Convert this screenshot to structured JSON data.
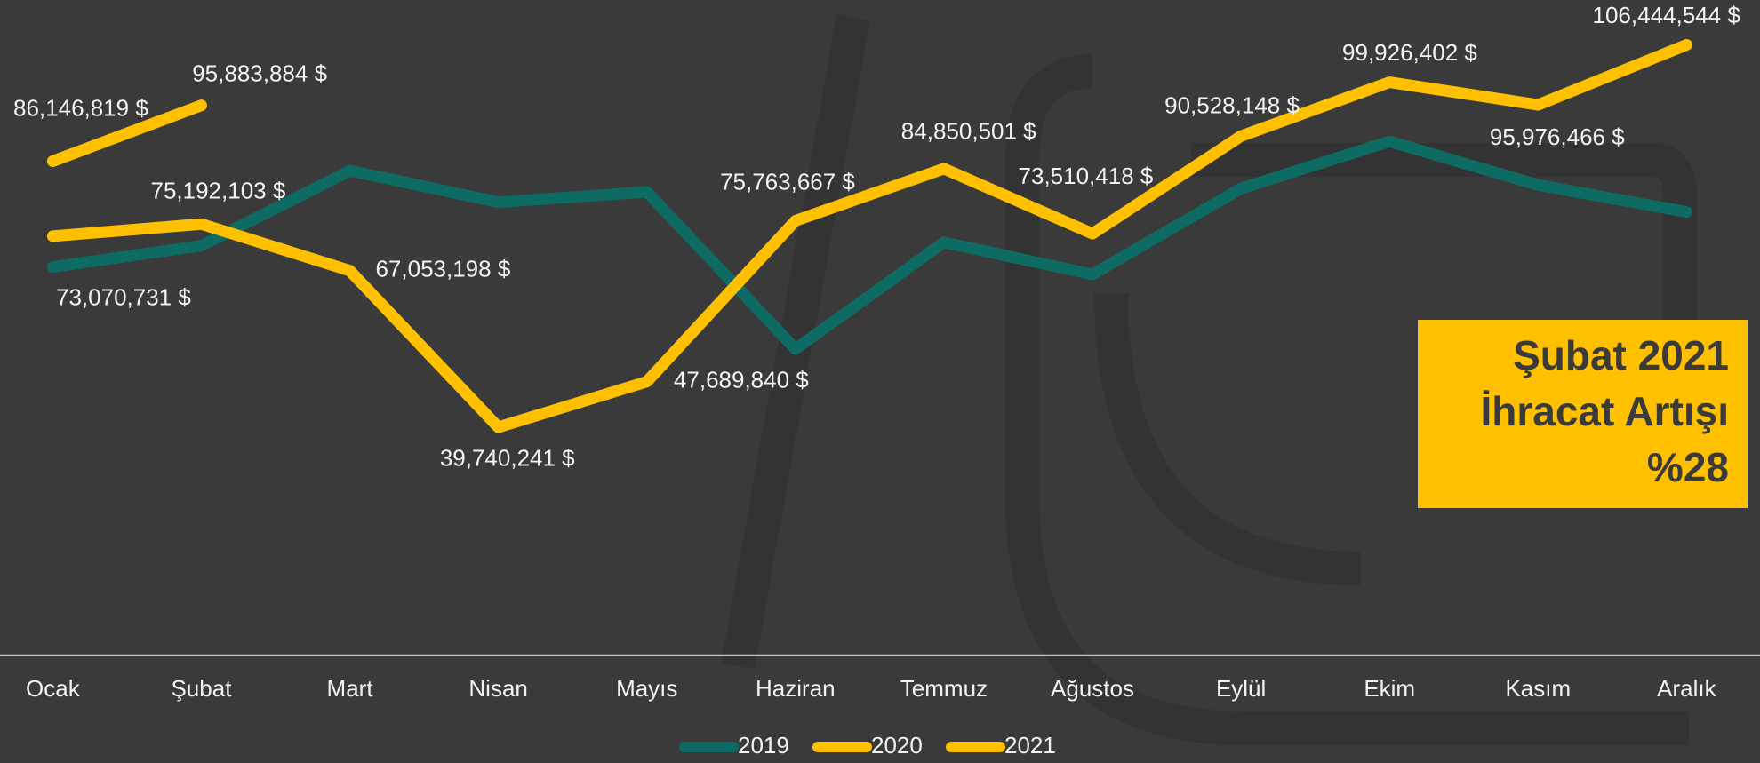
{
  "chart_data": {
    "type": "line",
    "categories": [
      "Ocak",
      "Şubat",
      "Mart",
      "Nisan",
      "Mayıs",
      "Haziran",
      "Temmuz",
      "Ağustos",
      "Eylül",
      "Ekim",
      "Kasım",
      "Aralık"
    ],
    "series": [
      {
        "name": "2019",
        "color": "#0e6b63",
        "values": [
          67700000,
          71400000,
          84500000,
          79000000,
          80800000,
          53400000,
          72000000,
          66400000,
          81400000,
          89600000,
          82000000,
          77300000
        ]
      },
      {
        "name": "2020",
        "color": "#ffc000",
        "values": [
          73070731,
          75192103,
          67053198,
          39740241,
          47689840,
          75763667,
          84850501,
          73510418,
          90528148,
          99926402,
          95976466,
          106444544
        ],
        "value_labels": [
          "73,070,731 $",
          "75,192,103 $",
          "67,053,198 $",
          "39,740,241 $",
          "47,689,840 $",
          "75,763,667 $",
          "84,850,501 $",
          "73,510,418 $",
          "90,528,148 $",
          "99,926,402 $",
          "95,976,466 $",
          "106,444,544 $"
        ]
      },
      {
        "name": "2021",
        "color": "#ffc000",
        "values": [
          86146819,
          95883884,
          null,
          null,
          null,
          null,
          null,
          null,
          null,
          null,
          null,
          null
        ],
        "value_labels": [
          "86,146,819 $",
          "95,883,884 $",
          null,
          null,
          null,
          null,
          null,
          null,
          null,
          null,
          null,
          null
        ]
      }
    ],
    "ylim": [
      0,
      114270000
    ],
    "annotation": [
      "Şubat 2021",
      "İhracat Artışı",
      "%28"
    ]
  }
}
